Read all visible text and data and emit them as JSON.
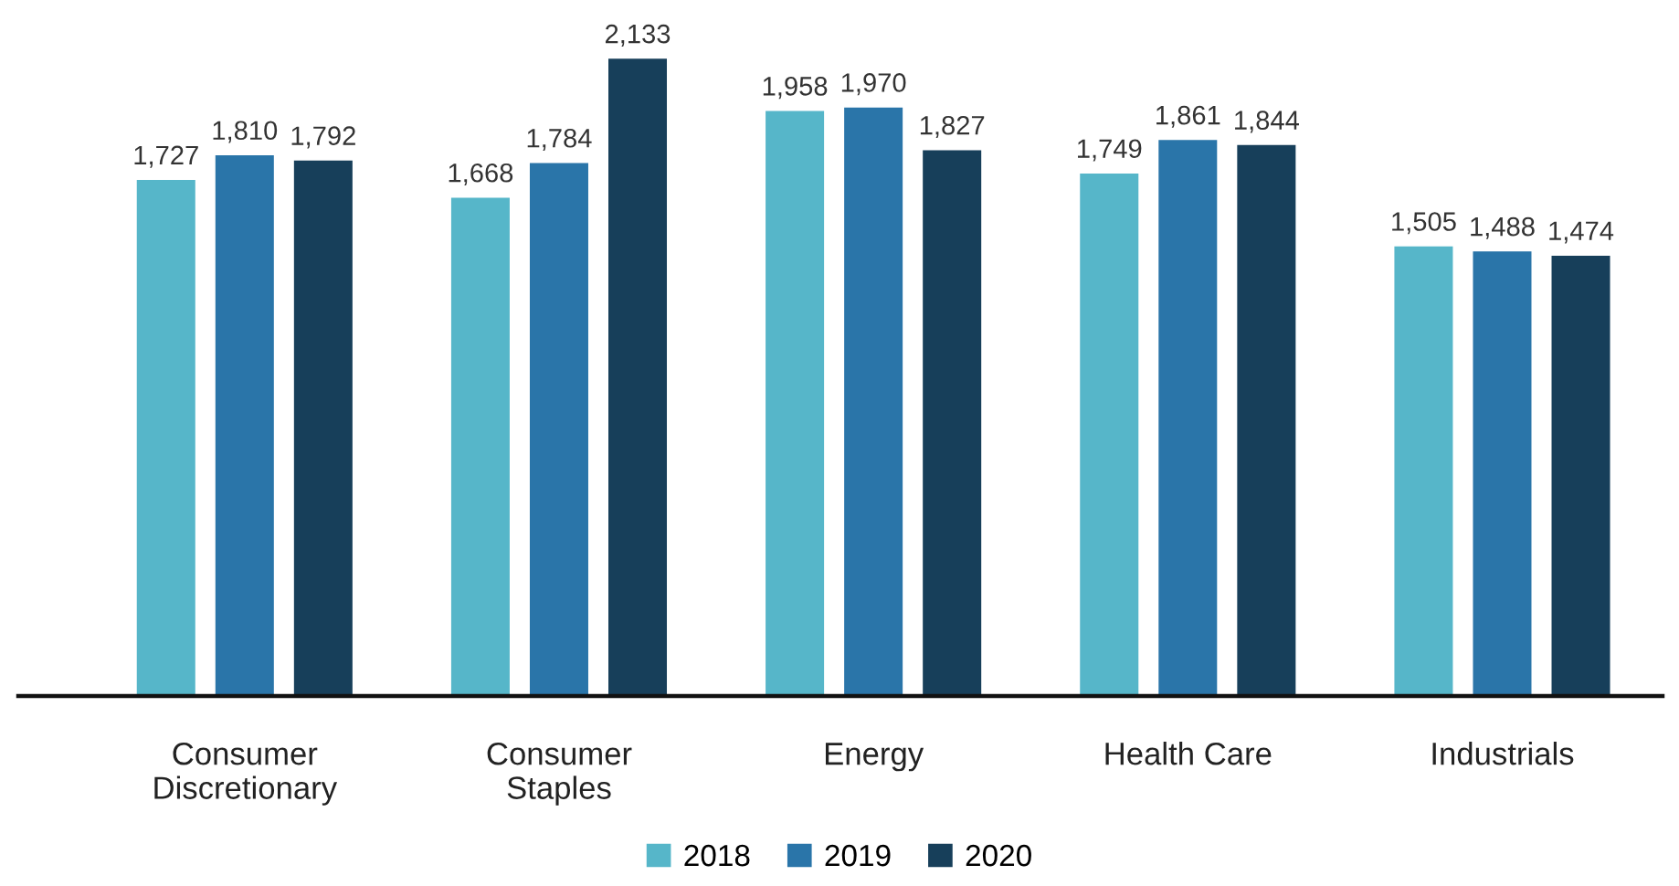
{
  "chart_data": {
    "type": "bar",
    "categories": [
      "Consumer\nDiscretionary",
      "Consumer\nStaples",
      "Energy",
      "Health Care",
      "Industrials"
    ],
    "series": [
      {
        "name": "2018",
        "color": "#56b6c9",
        "values": [
          1727,
          1668,
          1958,
          1749,
          1505
        ],
        "value_labels": [
          "1,727",
          "1,668",
          "1,958",
          "1,749",
          "1,505"
        ]
      },
      {
        "name": "2019",
        "color": "#2a75a9",
        "values": [
          1810,
          1784,
          1970,
          1861,
          1488
        ],
        "value_labels": [
          "1,810",
          "1,784",
          "1,970",
          "1,861",
          "1,488"
        ]
      },
      {
        "name": "2020",
        "color": "#173f5a",
        "values": [
          1792,
          2133,
          1827,
          1844,
          1474
        ],
        "value_labels": [
          "1,792",
          "2,133",
          "1,827",
          "1,844",
          "1,474"
        ]
      }
    ],
    "legend": "bottom"
  }
}
